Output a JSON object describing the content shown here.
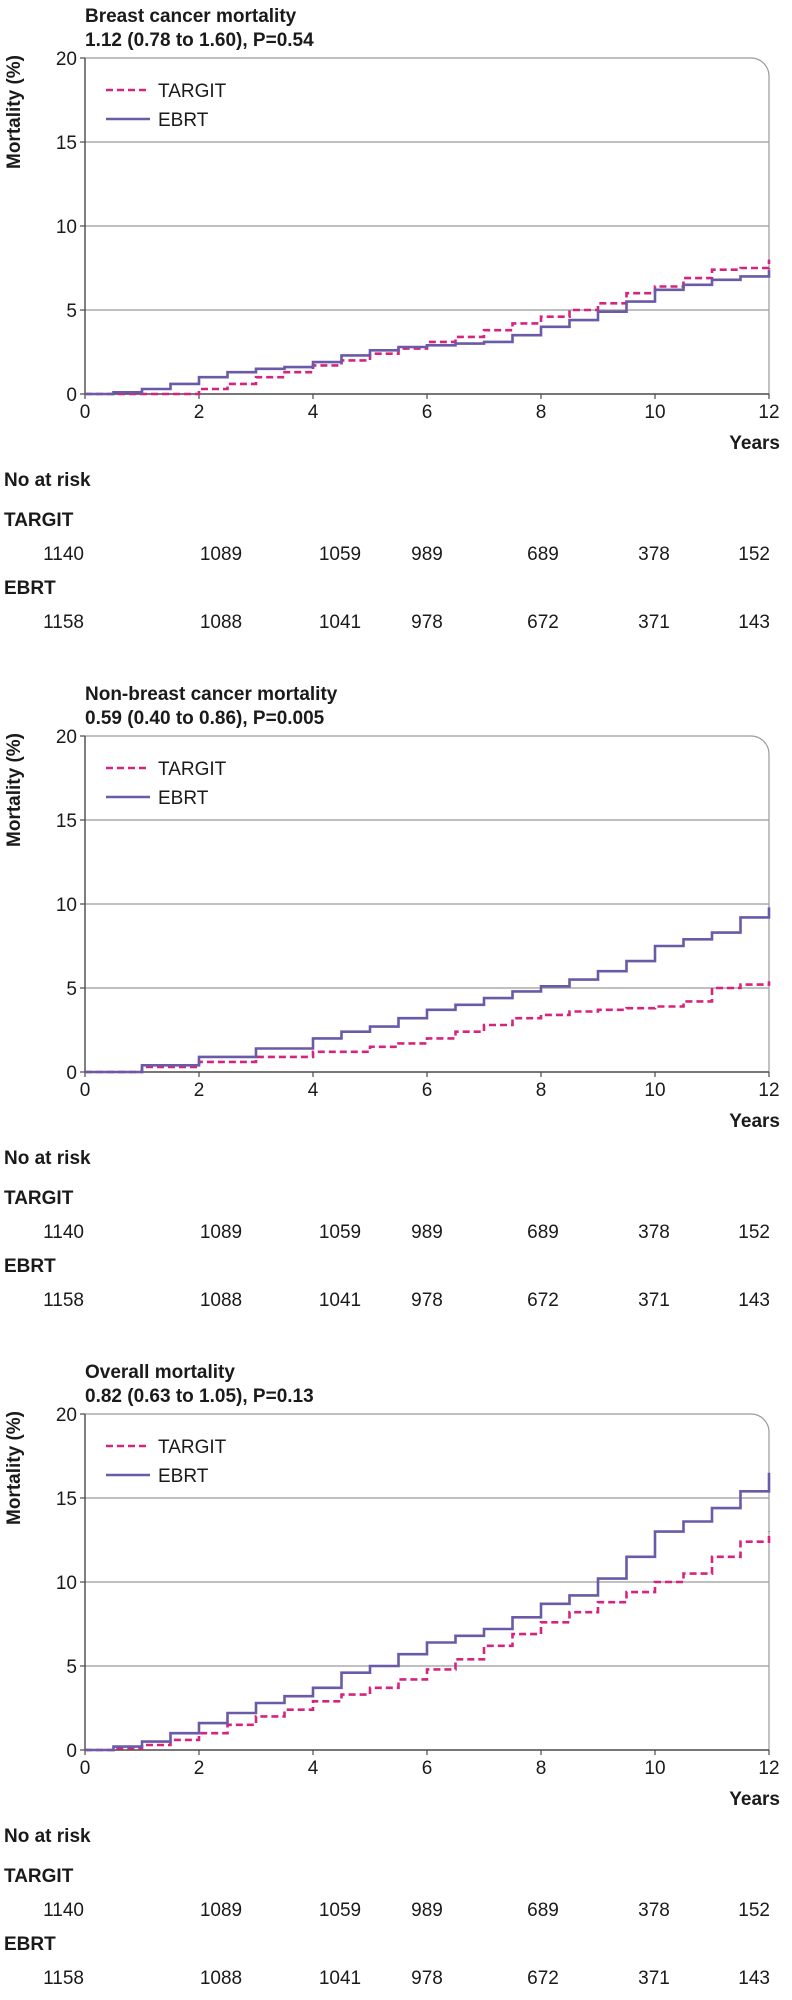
{
  "chart_data": [
    {
      "type": "line",
      "title": "Breast cancer mortality",
      "subtitle": "1.12 (0.78 to 1.60), P=0.54",
      "ylabel": "Mortality (%)",
      "xlabel": "Years",
      "xlim": [
        0,
        12
      ],
      "ylim": [
        0,
        20
      ],
      "xticks": [
        "0",
        "2",
        "4",
        "6",
        "8",
        "10",
        "12"
      ],
      "yticks": [
        "0",
        "5",
        "10",
        "15",
        "20"
      ],
      "grid": "horizontal",
      "legend_position": "top-left",
      "series": [
        {
          "name": "TARGIT",
          "color": "#d6247e",
          "style": "dashed",
          "x": [
            0,
            1,
            2,
            2.5,
            3,
            3.5,
            4,
            4.5,
            5,
            5.5,
            6,
            6.5,
            7,
            7.5,
            8,
            8.5,
            9,
            9.5,
            10,
            10.5,
            11,
            11.5,
            12
          ],
          "y": [
            0,
            0,
            0.3,
            0.6,
            1.0,
            1.3,
            1.7,
            2.0,
            2.4,
            2.7,
            3.1,
            3.4,
            3.8,
            4.2,
            4.6,
            5.0,
            5.4,
            6.0,
            6.4,
            6.9,
            7.4,
            7.5,
            8.0
          ]
        },
        {
          "name": "EBRT",
          "color": "#6a5aa8",
          "style": "solid",
          "x": [
            0,
            0.5,
            1,
            1.5,
            2,
            2.5,
            3,
            3.5,
            4,
            4.5,
            5,
            5.5,
            6,
            6.5,
            7,
            7.5,
            8,
            8.5,
            9,
            9.5,
            10,
            10.5,
            11,
            11.5,
            12
          ],
          "y": [
            0,
            0.1,
            0.3,
            0.6,
            1.0,
            1.3,
            1.5,
            1.6,
            1.9,
            2.3,
            2.6,
            2.8,
            2.9,
            3.0,
            3.1,
            3.5,
            4.0,
            4.4,
            4.9,
            5.5,
            6.2,
            6.5,
            6.8,
            7.0,
            7.4
          ]
        }
      ],
      "risk_table": {
        "title": "No at risk",
        "rows": [
          {
            "label": "TARGIT",
            "values": [
              "1140",
              "1089",
              "1059",
              "989",
              "689",
              "378",
              "152"
            ]
          },
          {
            "label": "EBRT",
            "values": [
              "1158",
              "1088",
              "1041",
              "978",
              "672",
              "371",
              "143"
            ]
          }
        ]
      }
    },
    {
      "type": "line",
      "title": "Non-breast cancer mortality",
      "subtitle": "0.59 (0.40 to 0.86), P=0.005",
      "ylabel": "Mortality (%)",
      "xlabel": "Years",
      "xlim": [
        0,
        12
      ],
      "ylim": [
        0,
        20
      ],
      "xticks": [
        "0",
        "2",
        "4",
        "6",
        "8",
        "10",
        "12"
      ],
      "yticks": [
        "0",
        "5",
        "10",
        "15",
        "20"
      ],
      "grid": "horizontal",
      "legend_position": "top-left",
      "series": [
        {
          "name": "TARGIT",
          "color": "#d6247e",
          "style": "dashed",
          "x": [
            0,
            1,
            2,
            3,
            4,
            5,
            5.5,
            6,
            6.5,
            7,
            7.5,
            8,
            8.5,
            9,
            9.5,
            10,
            10.5,
            11,
            11.5,
            12
          ],
          "y": [
            0,
            0.3,
            0.6,
            0.9,
            1.2,
            1.5,
            1.7,
            2.0,
            2.4,
            2.8,
            3.2,
            3.4,
            3.6,
            3.7,
            3.8,
            3.9,
            4.2,
            5.0,
            5.2,
            5.4
          ]
        },
        {
          "name": "EBRT",
          "color": "#6a5aa8",
          "style": "solid",
          "x": [
            0,
            1,
            2,
            3,
            4,
            4.5,
            5,
            5.5,
            6,
            6.5,
            7,
            7.5,
            8,
            8.5,
            9,
            9.5,
            10,
            10.5,
            11,
            11.5,
            12
          ],
          "y": [
            0,
            0.4,
            0.9,
            1.4,
            2.0,
            2.4,
            2.7,
            3.2,
            3.7,
            4.0,
            4.4,
            4.8,
            5.1,
            5.5,
            6.0,
            6.6,
            7.5,
            7.9,
            8.3,
            9.2,
            9.8
          ]
        }
      ],
      "risk_table": {
        "title": "No at risk",
        "rows": [
          {
            "label": "TARGIT",
            "values": [
              "1140",
              "1089",
              "1059",
              "989",
              "689",
              "378",
              "152"
            ]
          },
          {
            "label": "EBRT",
            "values": [
              "1158",
              "1088",
              "1041",
              "978",
              "672",
              "371",
              "143"
            ]
          }
        ]
      }
    },
    {
      "type": "line",
      "title": "Overall mortality",
      "subtitle": "0.82 (0.63 to 1.05), P=0.13",
      "ylabel": "Mortality (%)",
      "xlabel": "Years",
      "xlim": [
        0,
        12
      ],
      "ylim": [
        0,
        20
      ],
      "xticks": [
        "0",
        "2",
        "4",
        "6",
        "8",
        "10",
        "12"
      ],
      "yticks": [
        "0",
        "5",
        "10",
        "15",
        "20"
      ],
      "grid": "horizontal",
      "legend_position": "top-left",
      "series": [
        {
          "name": "TARGIT",
          "color": "#d6247e",
          "style": "dashed",
          "x": [
            0,
            0.5,
            1,
            1.5,
            2,
            2.5,
            3,
            3.5,
            4,
            4.5,
            5,
            5.5,
            6,
            6.5,
            7,
            7.5,
            8,
            8.5,
            9,
            9.5,
            10,
            10.5,
            11,
            11.5,
            12
          ],
          "y": [
            0,
            0.1,
            0.3,
            0.6,
            1.0,
            1.5,
            2.0,
            2.4,
            2.9,
            3.3,
            3.7,
            4.2,
            4.8,
            5.4,
            6.2,
            6.9,
            7.6,
            8.2,
            8.8,
            9.4,
            10.0,
            10.5,
            11.5,
            12.4,
            13.0
          ]
        },
        {
          "name": "EBRT",
          "color": "#6a5aa8",
          "style": "solid",
          "x": [
            0,
            0.5,
            1,
            1.5,
            2,
            2.5,
            3,
            3.5,
            4,
            4.5,
            5,
            5.5,
            6,
            6.5,
            7,
            7.5,
            8,
            8.5,
            9,
            9.5,
            10,
            10.5,
            11,
            11.5,
            12
          ],
          "y": [
            0,
            0.2,
            0.5,
            1.0,
            1.6,
            2.2,
            2.8,
            3.2,
            3.7,
            4.6,
            5.0,
            5.7,
            6.4,
            6.8,
            7.2,
            7.9,
            8.7,
            9.2,
            10.2,
            11.5,
            13.0,
            13.6,
            14.4,
            15.4,
            16.5
          ]
        }
      ],
      "risk_table": {
        "title": "No at risk",
        "rows": [
          {
            "label": "TARGIT",
            "values": [
              "1140",
              "1089",
              "1059",
              "989",
              "689",
              "378",
              "152"
            ]
          },
          {
            "label": "EBRT",
            "values": [
              "1158",
              "1088",
              "1041",
              "978",
              "672",
              "371",
              "143"
            ]
          }
        ]
      }
    }
  ]
}
